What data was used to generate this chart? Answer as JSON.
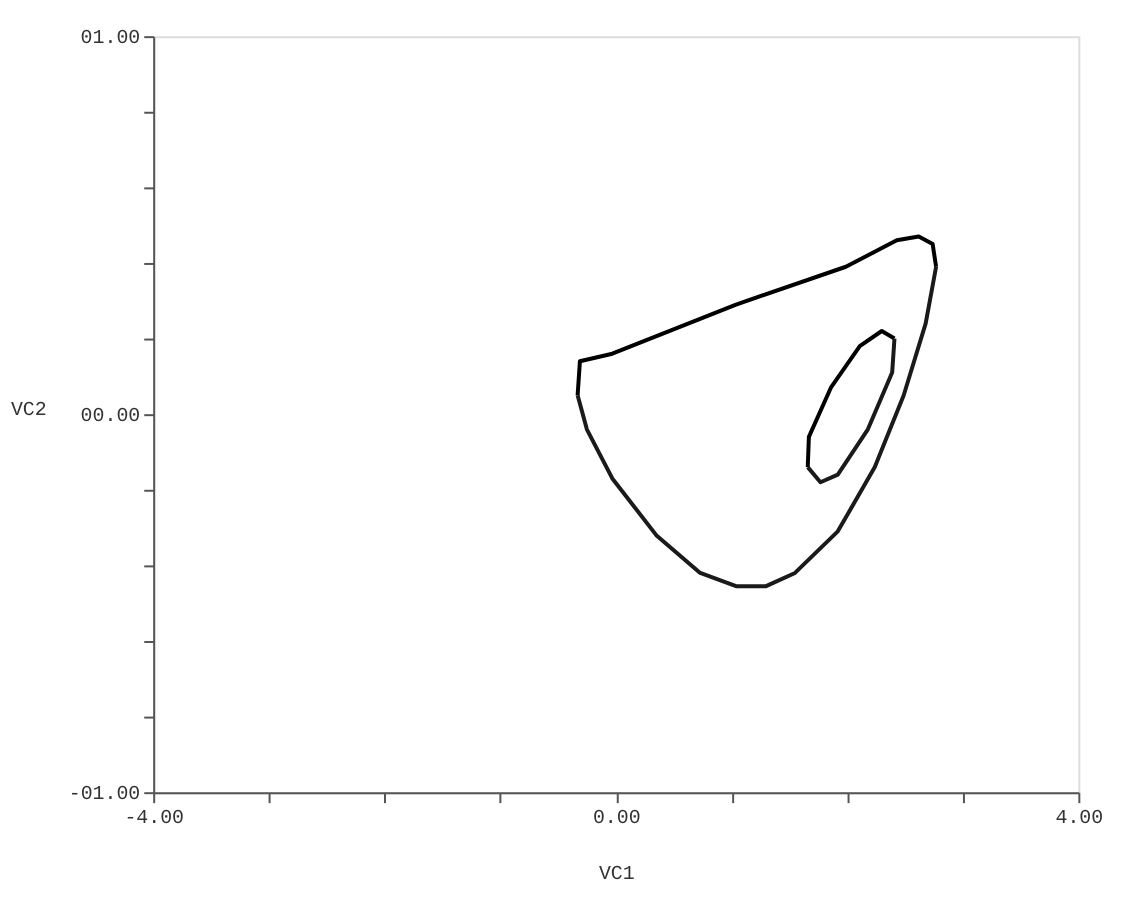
{
  "chart_data": {
    "type": "line",
    "xlabel": "VC1",
    "ylabel": "VC2",
    "xlim": [
      -4,
      4
    ],
    "ylim": [
      -1,
      1
    ],
    "xticks": [
      {
        "value": -4,
        "label": "-4.00"
      },
      {
        "value": -3,
        "label": null
      },
      {
        "value": -2,
        "label": null
      },
      {
        "value": -1,
        "label": null
      },
      {
        "value": 0,
        "label": "0.00"
      },
      {
        "value": 1,
        "label": null
      },
      {
        "value": 2,
        "label": null
      },
      {
        "value": 3,
        "label": null
      },
      {
        "value": 4,
        "label": "4.00"
      }
    ],
    "yticks": [
      {
        "value": -1,
        "label": "-01.00"
      },
      {
        "value": -0.8,
        "label": null
      },
      {
        "value": -0.6,
        "label": null
      },
      {
        "value": -0.4,
        "label": null
      },
      {
        "value": -0.2,
        "label": null
      },
      {
        "value": 0,
        "label": "00.00"
      },
      {
        "value": 0.2,
        "label": null
      },
      {
        "value": 0.4,
        "label": null
      },
      {
        "value": 0.6,
        "label": null
      },
      {
        "value": 0.8,
        "label": null
      },
      {
        "value": 1,
        "label": "01.00"
      }
    ],
    "marker": "none",
    "line_style": "solid",
    "series": [
      {
        "color": "#000000",
        "x": [
          -0.33,
          -0.31,
          -0.03,
          1.04,
          1.99,
          2.43,
          2.62,
          2.74,
          2.77
        ],
        "values": [
          0.05,
          0.14,
          0.16,
          0.29,
          0.39,
          0.46,
          0.47,
          0.45,
          0.39
        ]
      },
      {
        "color": "#1a1a1a",
        "x": [
          -0.33,
          -0.25,
          -0.03,
          0.35,
          0.73,
          1.04,
          1.3,
          1.55,
          1.92,
          2.24,
          2.49,
          2.68,
          2.77
        ],
        "values": [
          0.05,
          -0.04,
          -0.17,
          -0.32,
          -0.42,
          -0.455,
          -0.455,
          -0.42,
          -0.31,
          -0.14,
          0.05,
          0.24,
          0.39
        ]
      },
      {
        "color": "#000000",
        "x": [
          1.66,
          1.67,
          1.86,
          2.11,
          2.3,
          2.41
        ],
        "values": [
          -0.14,
          -0.06,
          0.07,
          0.18,
          0.22,
          0.2
        ]
      },
      {
        "color": "#1a1a1a",
        "x": [
          1.66,
          1.77,
          1.92,
          2.18,
          2.39,
          2.41
        ],
        "values": [
          -0.14,
          -0.18,
          -0.16,
          -0.04,
          0.11,
          0.2
        ]
      }
    ]
  }
}
